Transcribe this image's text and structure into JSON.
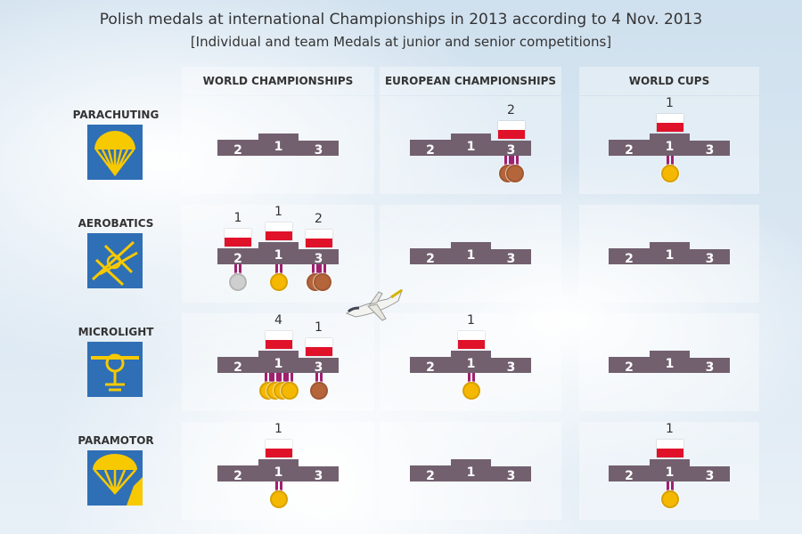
{
  "title": "Polish medals at international Championships in 2013 according to 4 Nov. 2013",
  "subtitle": "[Individual and team Medals at junior and senior competitions]",
  "columns": [
    "WORLD CHAMPIONSHIPS",
    "EUROPEAN CHAMPIONSHIPS",
    "WORLD CUPS"
  ],
  "step_labels": [
    "2",
    "1",
    "3"
  ],
  "colors": {
    "podium": "#72606f",
    "gold": "#f5b800",
    "silver": "#cfcfcf",
    "bronze": "#b5653a",
    "ribbon": "#a0206f",
    "icon_bg": "#2f6fb5",
    "icon_fg": "#f7c900"
  },
  "rows": [
    {
      "label": "PARACHUTING",
      "icon": "parachute-icon",
      "cells": [
        {
          "first": 0,
          "second": 0,
          "third": 0
        },
        {
          "first": 0,
          "second": 0,
          "third": 2
        },
        {
          "first": 1,
          "second": 0,
          "third": 0
        }
      ]
    },
    {
      "label": "AEROBATICS",
      "icon": "aerobatic-plane-icon",
      "cells": [
        {
          "first": 1,
          "second": 1,
          "third": 2
        },
        {
          "first": 0,
          "second": 0,
          "third": 0
        },
        {
          "first": 0,
          "second": 0,
          "third": 0
        }
      ]
    },
    {
      "label": "MICROLIGHT",
      "icon": "microlight-icon",
      "cells": [
        {
          "first": 4,
          "second": 0,
          "third": 1
        },
        {
          "first": 1,
          "second": 0,
          "third": 0
        },
        {
          "first": 0,
          "second": 0,
          "third": 0
        }
      ]
    },
    {
      "label": "PARAMOTOR",
      "icon": "paramotor-icon",
      "cells": [
        {
          "first": 1,
          "second": 0,
          "third": 0
        },
        {
          "first": 0,
          "second": 0,
          "third": 0
        },
        {
          "first": 1,
          "second": 0,
          "third": 0
        }
      ]
    }
  ]
}
